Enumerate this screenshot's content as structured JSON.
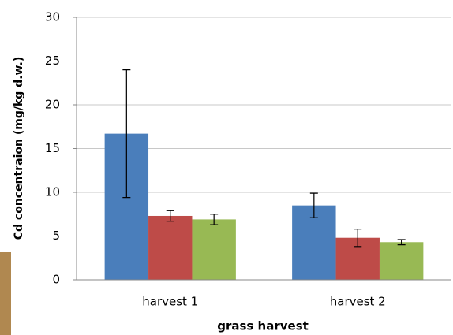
{
  "chart_data": {
    "type": "bar",
    "y_label": "Cd concentraion (mg/kg d.w.)",
    "x_label": "grass harvest",
    "categories": [
      "harvest 1",
      "harvest 2"
    ],
    "series": [
      {
        "color": "#4a7ebb",
        "values": [
          16.7,
          8.5
        ],
        "errors": [
          7.3,
          1.4
        ]
      },
      {
        "color": "#be4b48",
        "values": [
          7.3,
          4.8
        ],
        "errors": [
          0.6,
          1.0
        ]
      },
      {
        "color": "#98b954",
        "values": [
          6.9,
          4.3
        ],
        "errors": [
          0.6,
          0.3
        ]
      }
    ],
    "ylim": [
      0,
      30
    ],
    "yticks": [
      0,
      5,
      10,
      15,
      20,
      25,
      30
    ],
    "grid": true
  }
}
